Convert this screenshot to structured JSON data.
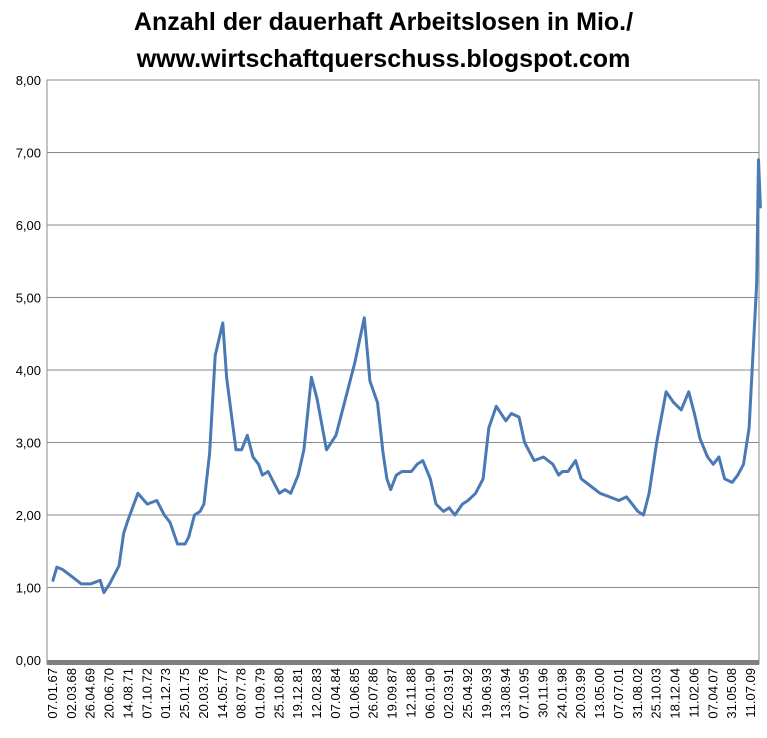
{
  "chart_data": {
    "type": "line",
    "title_lines": [
      "Anzahl der dauerhaft Arbeitslosen in Mio./",
      "www.wirtschaftquerschuss.blogspot.com"
    ],
    "xlabel": "",
    "ylabel": "",
    "ylim": [
      0,
      8
    ],
    "yticks": [
      "0,00",
      "1,00",
      "2,00",
      "3,00",
      "4,00",
      "5,00",
      "6,00",
      "7,00",
      "8,00"
    ],
    "grid": true,
    "line_color": "#4a7ab5",
    "x_tick_labels": [
      "07.01.67",
      "02.03.68",
      "26.04.69",
      "20.06.70",
      "14.08.71",
      "07.10.72",
      "01.12.73",
      "25.01.75",
      "20.03.76",
      "14.05.77",
      "08.07.78",
      "01.09.79",
      "25.10.80",
      "19.12.81",
      "12.02.83",
      "07.04.84",
      "01.06.85",
      "26.07.86",
      "19.09.87",
      "12.11.88",
      "06.01.90",
      "02.03.91",
      "25.04.92",
      "19.06.93",
      "13.08.94",
      "07.10.95",
      "30.11.96",
      "24.01.98",
      "20.03.99",
      "13.05.00",
      "07.07.01",
      "31.08.02",
      "25.10.03",
      "18.12.04",
      "11.02.06",
      "07.04.07",
      "31.05.08",
      "11.07.09"
    ],
    "series": [
      {
        "name": "Anzahl der dauerhaft Arbeitslosen in Mio.",
        "x": [
          0,
          0.2,
          0.5,
          1,
          1.5,
          2,
          2.5,
          2.7,
          3,
          3.5,
          3.75,
          4,
          4.5,
          5,
          5.5,
          5.9,
          6.2,
          6.6,
          7,
          7.2,
          7.5,
          7.8,
          8,
          8.3,
          8.6,
          9,
          9.2,
          9.5,
          9.7,
          10,
          10.3,
          10.6,
          10.9,
          11.1,
          11.4,
          11.7,
          12,
          12.3,
          12.6,
          13,
          13.3,
          13.7,
          14,
          14.5,
          15,
          15.5,
          16,
          16.5,
          16.8,
          17.2,
          17.5,
          17.7,
          17.9,
          18.2,
          18.5,
          19,
          19.3,
          19.6,
          20,
          20.3,
          20.7,
          21,
          21.3,
          21.7,
          22,
          22.4,
          22.8,
          23.1,
          23.5,
          24,
          24.3,
          24.7,
          25,
          25.5,
          26,
          26.5,
          26.8,
          27,
          27.3,
          27.7,
          28,
          28.5,
          29,
          29.5,
          30,
          30.4,
          30.7,
          31,
          31.3,
          31.6,
          32,
          32.5,
          32.9,
          33.3,
          33.7,
          34,
          34.3,
          34.7,
          35,
          35.3,
          35.6,
          36,
          36.3,
          36.6,
          36.9,
          37.1,
          37.3,
          37.4,
          37.5
        ],
        "values": [
          1.1,
          1.28,
          1.25,
          1.15,
          1.05,
          1.05,
          1.1,
          0.93,
          1.05,
          1.3,
          1.75,
          1.95,
          2.3,
          2.15,
          2.2,
          2.0,
          1.9,
          1.6,
          1.6,
          1.7,
          2.0,
          2.05,
          2.15,
          2.85,
          4.2,
          4.65,
          3.9,
          3.3,
          2.9,
          2.9,
          3.1,
          2.8,
          2.7,
          2.55,
          2.6,
          2.45,
          2.3,
          2.35,
          2.3,
          2.55,
          2.9,
          3.9,
          3.6,
          2.9,
          3.1,
          3.6,
          4.1,
          4.72,
          3.85,
          3.55,
          2.85,
          2.5,
          2.35,
          2.55,
          2.6,
          2.6,
          2.7,
          2.75,
          2.5,
          2.15,
          2.05,
          2.1,
          2.0,
          2.15,
          2.2,
          2.3,
          2.5,
          3.2,
          3.5,
          3.3,
          3.4,
          3.35,
          3.0,
          2.75,
          2.8,
          2.7,
          2.55,
          2.6,
          2.6,
          2.75,
          2.5,
          2.4,
          2.3,
          2.25,
          2.2,
          2.25,
          2.15,
          2.05,
          2.0,
          2.3,
          3.0,
          3.7,
          3.55,
          3.45,
          3.7,
          3.4,
          3.05,
          2.8,
          2.7,
          2.8,
          2.5,
          2.45,
          2.55,
          2.7,
          3.2,
          4.2,
          5.2,
          6.9,
          6.25
        ]
      }
    ]
  }
}
